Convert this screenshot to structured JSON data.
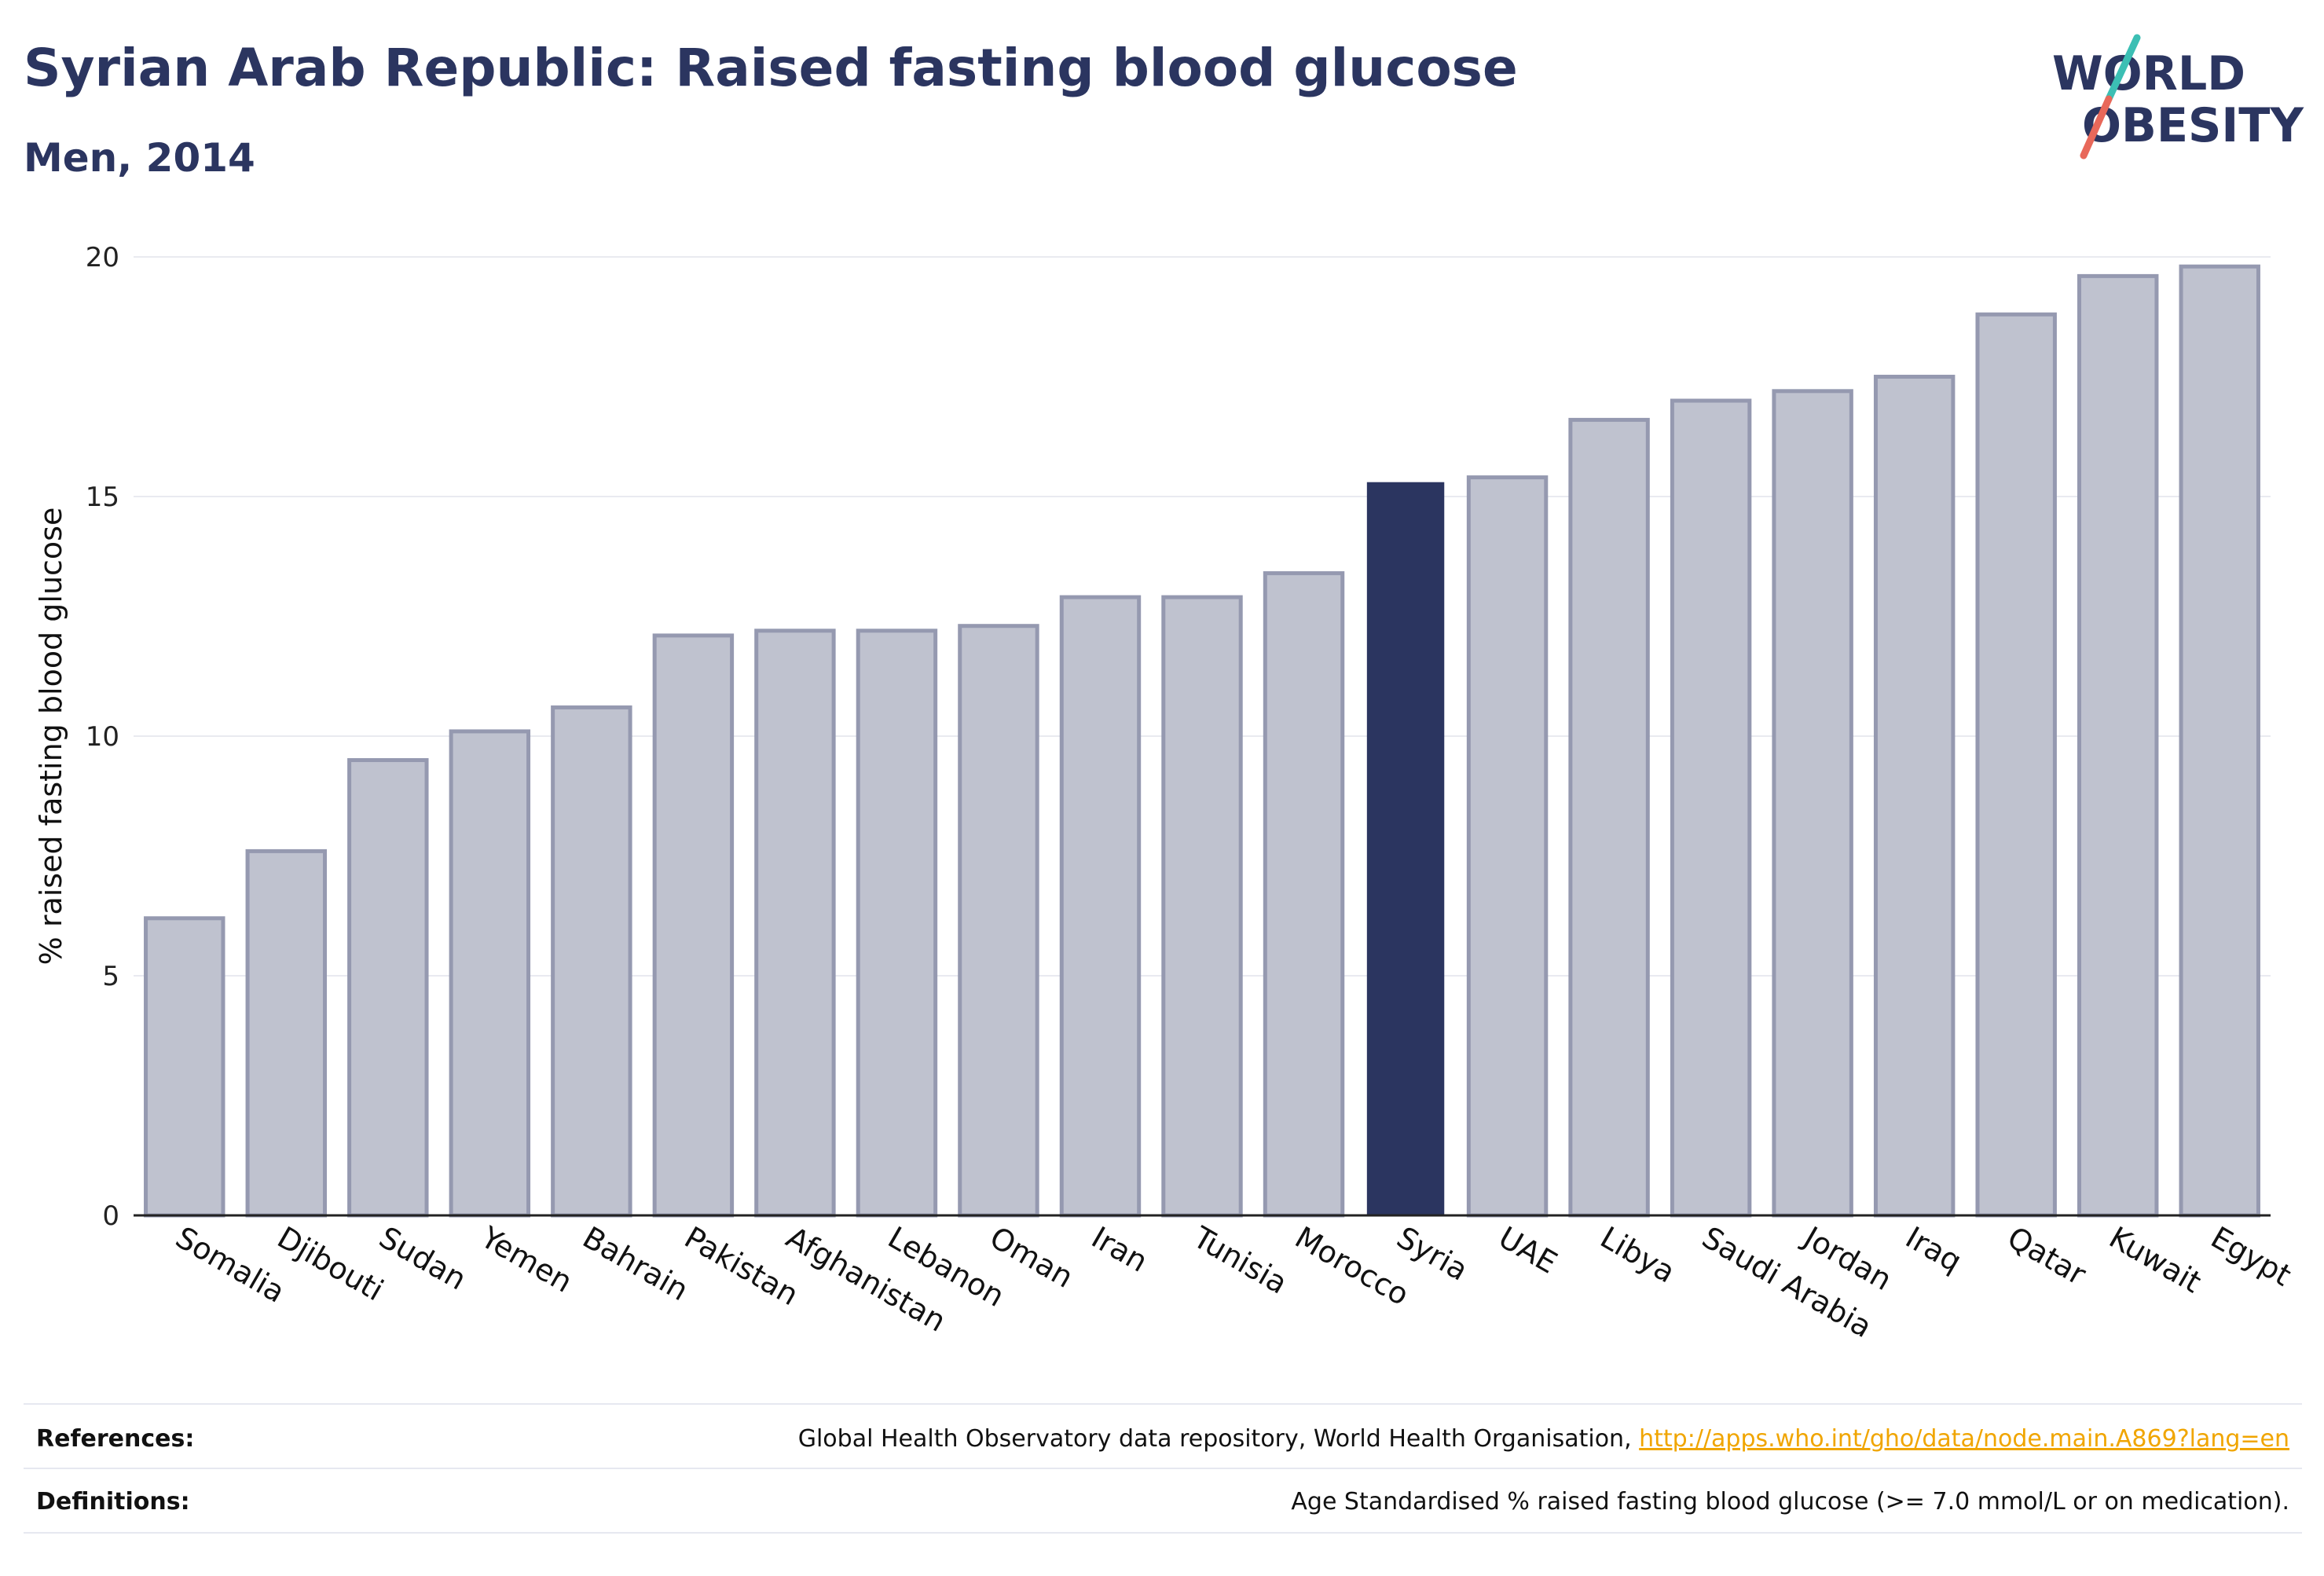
{
  "header": {
    "title": "Syrian Arab Republic: Raised fasting blood glucose",
    "subtitle": "Men, 2014"
  },
  "logo": {
    "line1": "WORLD",
    "line2": "OBESITY",
    "colors": {
      "text": "#2b3560",
      "slash_teal": "#3cbfb4",
      "slash_coral": "#e8685a"
    }
  },
  "chart_data": {
    "type": "bar",
    "ylabel": "% raised fasting blood glucose",
    "ylim": [
      0,
      20
    ],
    "yticks": [
      0,
      5,
      10,
      15,
      20
    ],
    "grid": true,
    "categories": [
      "Somalia",
      "Djibouti",
      "Sudan",
      "Yemen",
      "Bahrain",
      "Pakistan",
      "Afghanistan",
      "Lebanon",
      "Oman",
      "Iran",
      "Tunisia",
      "Morocco",
      "Syria",
      "UAE",
      "Libya",
      "Saudi Arabia",
      "Jordan",
      "Iraq",
      "Qatar",
      "Kuwait",
      "Egypt"
    ],
    "values": [
      6.2,
      7.6,
      9.5,
      10.1,
      10.6,
      12.1,
      12.2,
      12.2,
      12.3,
      12.9,
      12.9,
      13.4,
      15.3,
      15.4,
      16.6,
      17.0,
      17.2,
      17.5,
      18.8,
      19.6,
      19.8
    ],
    "highlight": "Syria",
    "colors": {
      "bar": "#bfc2cf",
      "bar_border": "#9599b0",
      "highlight": "#2b3560",
      "grid": "#e9eaf0",
      "axis": "#222222"
    }
  },
  "footer": {
    "references_label": "References:",
    "references_text": "Global Health Observatory data repository, World Health Organisation, ",
    "references_link": "http://apps.who.int/gho/data/node.main.A869?lang=en",
    "definitions_label": "Definitions:",
    "definitions_text": "Age Standardised % raised fasting blood glucose (>= 7.0 mmol/L or on medication)."
  }
}
